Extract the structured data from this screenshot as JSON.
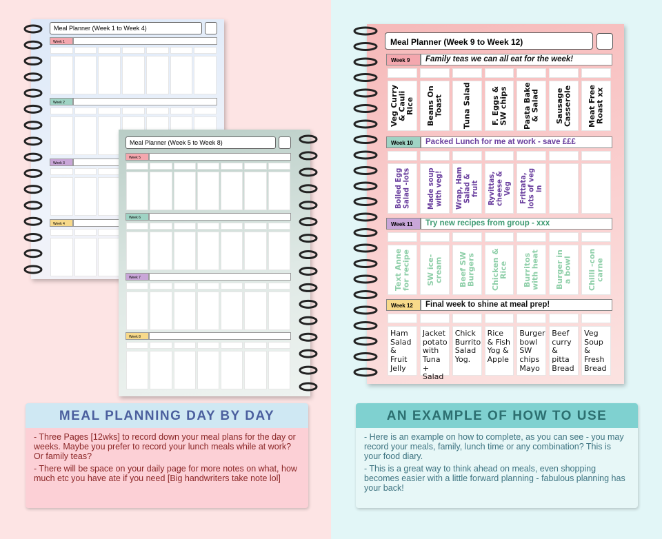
{
  "pages": [
    {
      "title": "Meal Planner (Week 1 to Week 4)",
      "weeks": [
        {
          "label": "Week 1"
        },
        {
          "label": "Week 2"
        },
        {
          "label": "Week 3"
        },
        {
          "label": "Week 4"
        }
      ]
    },
    {
      "title": "Meal Planner (Week 5 to Week 8)",
      "weeks": [
        {
          "label": "Week 5"
        },
        {
          "label": "Week 6"
        },
        {
          "label": "Week 7"
        },
        {
          "label": "Week 8"
        }
      ]
    }
  ],
  "example": {
    "title": "Meal Planner (Week 9 to Week 12)",
    "weeks": [
      {
        "label": "Week 9",
        "note": "Family teas we can all eat for the week!",
        "meals": [
          "Veg Curry & Cauli Rice",
          "Beans On Toast",
          "Tuna Salad",
          "F. Eggs & SW chips",
          "Pasta Bake & Salad",
          "Sausage Casserole",
          "Meat Free Roast xx"
        ]
      },
      {
        "label": "Week 10",
        "note": "Packed Lunch for me at work - save £££",
        "meals": [
          "Boiled Egg Salad -lots",
          "Made soup with veg!",
          "Wrap, Ham Salad & fruit",
          "Ryvittas, cheese & Veg",
          "Frittata, lots of veg in"
        ]
      },
      {
        "label": "Week 11",
        "note": "Try new recipes from group - xxx",
        "meals": [
          "Text Anne for recipe",
          "SW ice-cream",
          "Beef SW Burgers",
          "Chicken & Rice",
          "Burritos with heat",
          "Burger in a bowl",
          "Chilli -con carne"
        ]
      },
      {
        "label": "Week 12",
        "note": "Final week to shine at meal prep!",
        "meals": [
          "Ham Salad & Fruit Jelly",
          "Jacket potato with Tuna + Salad",
          "Chick Burrito Salad Yog.",
          "Rice & Fish Yog & Apple",
          "Burger bowl SW chips Mayo",
          "Beef curry & pitta Bread",
          "Veg Soup & Fresh Bread"
        ]
      }
    ]
  },
  "panels": [
    {
      "heading": "MEAL PLANNING DAY BY DAY",
      "paragraphs": [
        "- Three Pages [12wks] to record down your meal plans for the day or weeks.  Maybe you prefer to record your lunch meals while at work? Or family teas?",
        "- There will be space on your daily page for more notes on what, how much etc you have ate if you need  [Big handwriters take note lol]"
      ]
    },
    {
      "heading": "AN EXAMPLE OF HOW TO USE",
      "paragraphs": [
        "- Here is an example on how to complete, as you can see - you may record your meals, family, lunch time or any combination?  This is your food diary.",
        "-  This is a great way to think ahead on meals, even shopping becomes easier with a little forward planning - fabulous planning has your back!"
      ]
    }
  ]
}
